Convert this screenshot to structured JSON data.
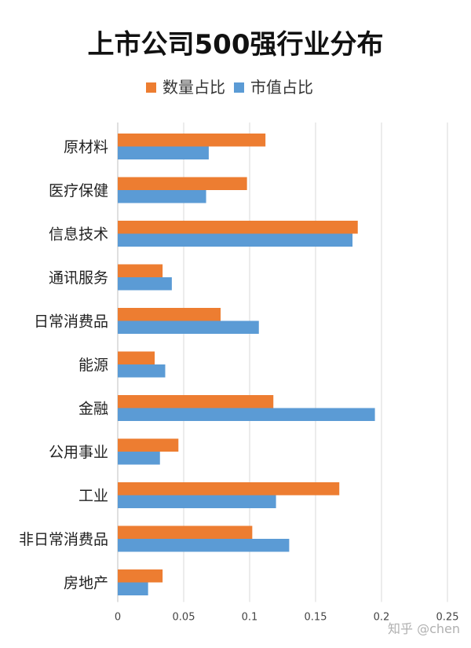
{
  "chart_data": {
    "type": "bar",
    "orientation": "horizontal",
    "title": "上市公司500强行业分布",
    "categories": [
      "原材料",
      "医疗保健",
      "信息技术",
      "通讯服务",
      "日常消费品",
      "能源",
      "金融",
      "公用事业",
      "工业",
      "非日常消费品",
      "房地产"
    ],
    "series": [
      {
        "name": "数量占比",
        "color": "#ED7D31",
        "values": [
          0.112,
          0.098,
          0.182,
          0.034,
          0.078,
          0.028,
          0.118,
          0.046,
          0.168,
          0.102,
          0.034
        ]
      },
      {
        "name": "市值占比",
        "color": "#5B9BD5",
        "values": [
          0.069,
          0.067,
          0.178,
          0.041,
          0.107,
          0.036,
          0.195,
          0.032,
          0.12,
          0.13,
          0.023
        ]
      }
    ],
    "xlim": [
      0,
      0.25
    ],
    "xticks": [
      0,
      0.05,
      0.1,
      0.15,
      0.2,
      0.25
    ],
    "xtick_labels": [
      "0",
      "0.05",
      "0.1",
      "0.15",
      "0.2",
      "0.25"
    ],
    "grid": true,
    "legend_position": "top"
  },
  "watermark": "知乎 @chen"
}
